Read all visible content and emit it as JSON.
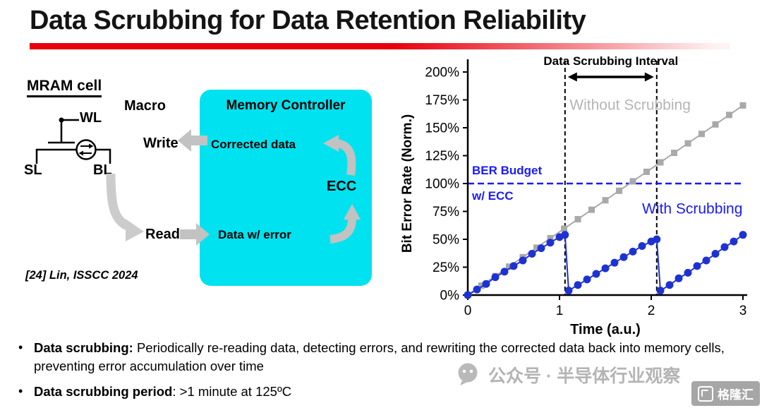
{
  "slide": {
    "title": "Data Scrubbing for Data Retention Reliability",
    "citation": "[24] Lin, ISSCC 2024"
  },
  "colors": {
    "accent_red": "#e8000d",
    "controller_box": "#00e2ef",
    "budget_blue": "#1a1aff"
  },
  "diagram": {
    "mram_cell_label": "MRAM cell",
    "wl": "WL",
    "sl": "SL",
    "bl": "BL",
    "macro_label": "Macro",
    "write_label": "Write",
    "read_label": "Read",
    "controller": {
      "title": "Memory Controller",
      "corrected_data": "Corrected data",
      "ecc": "ECC",
      "data_w_error": "Data w/ error"
    }
  },
  "chart_data": {
    "type": "line",
    "title": "",
    "xlabel": "Time (a.u.)",
    "ylabel": "Bit Error Rate (Norm.)",
    "xlim": [
      0,
      3
    ],
    "ylim": [
      0,
      200
    ],
    "xticks": [
      0,
      1,
      2,
      3
    ],
    "yticks": [
      0,
      25,
      50,
      75,
      100,
      125,
      150,
      175,
      200
    ],
    "ytick_suffix": "%",
    "grid": false,
    "interval": {
      "label": "Data Scrubbing Interval",
      "x1": 1.06,
      "x2": 2.06
    },
    "budget": {
      "y": 100,
      "labels": [
        "BER Budget",
        "w/ ECC"
      ],
      "color": "#1a1aff"
    },
    "series": [
      {
        "name": "Without Scrubbing",
        "color": "#a9a9a9",
        "marker": "square",
        "label_color": "#b5b5b5",
        "label_pos": [
          1.77,
          166
        ],
        "label_anchor": "middle",
        "points": [
          [
            0,
            0
          ],
          [
            0.15,
            8.5
          ],
          [
            0.3,
            17
          ],
          [
            0.45,
            25.5
          ],
          [
            0.6,
            34
          ],
          [
            0.75,
            42.5
          ],
          [
            0.9,
            51
          ],
          [
            1.05,
            59.5
          ],
          [
            1.2,
            68
          ],
          [
            1.35,
            76.5
          ],
          [
            1.5,
            85
          ],
          [
            1.65,
            93.5
          ],
          [
            1.8,
            102
          ],
          [
            1.95,
            110.5
          ],
          [
            2.1,
            119
          ],
          [
            2.25,
            127.5
          ],
          [
            2.4,
            136
          ],
          [
            2.55,
            144.5
          ],
          [
            2.7,
            153
          ],
          [
            2.85,
            161.5
          ],
          [
            3,
            170
          ]
        ]
      },
      {
        "name": "With Scrubbing",
        "color": "#1e32d2",
        "marker": "circle",
        "label_color": "#1a1aff",
        "label_pos": [
          1.9,
          73
        ],
        "label_anchor": "start",
        "points": [
          [
            0,
            0
          ],
          [
            0.1,
            5
          ],
          [
            0.2,
            10
          ],
          [
            0.3,
            16
          ],
          [
            0.4,
            21
          ],
          [
            0.5,
            26
          ],
          [
            0.6,
            31
          ],
          [
            0.7,
            37
          ],
          [
            0.8,
            42
          ],
          [
            0.9,
            47
          ],
          [
            1,
            52
          ],
          [
            1.06,
            54
          ],
          [
            1.1,
            4
          ],
          [
            1.2,
            9
          ],
          [
            1.3,
            14
          ],
          [
            1.4,
            19
          ],
          [
            1.5,
            24
          ],
          [
            1.6,
            29
          ],
          [
            1.7,
            34
          ],
          [
            1.8,
            39
          ],
          [
            1.9,
            44
          ],
          [
            2,
            48
          ],
          [
            2.06,
            50
          ],
          [
            2.1,
            4
          ],
          [
            2.2,
            9
          ],
          [
            2.3,
            15
          ],
          [
            2.4,
            20
          ],
          [
            2.5,
            26
          ],
          [
            2.6,
            31
          ],
          [
            2.7,
            37
          ],
          [
            2.8,
            43
          ],
          [
            2.9,
            48
          ],
          [
            3,
            54
          ]
        ]
      }
    ]
  },
  "bullets": [
    {
      "bold": "Data scrubbing:",
      "rest": " Periodically re-reading data, detecting errors, and rewriting the corrected data back into memory cells, preventing error accumulation over time"
    },
    {
      "bold": "Data scrubbing period",
      "rest": ": >1 minute at 125ºC"
    }
  ],
  "ui": {
    "bullet_marker": "•"
  },
  "watermark": {
    "wechat_text": "公众号 · 半导体行业观察",
    "logo_text": "格隆汇"
  }
}
